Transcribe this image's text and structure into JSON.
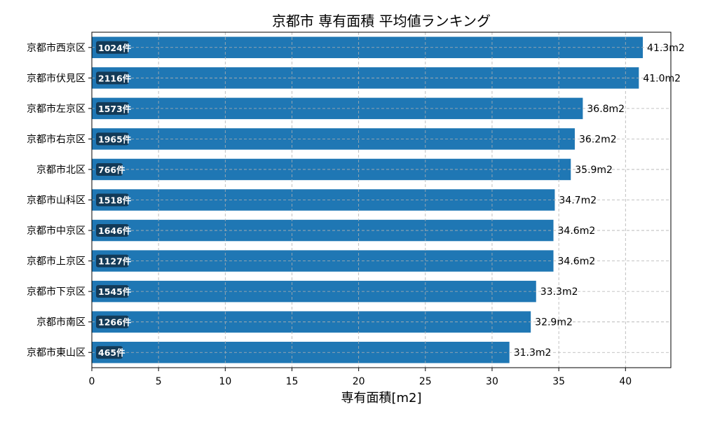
{
  "chart_data": {
    "type": "bar",
    "orientation": "horizontal",
    "title": "京都市 専有面積 平均値ランキング",
    "xlabel": "専有面積[m2]",
    "ylabel": "",
    "xlim": [
      0,
      43.4
    ],
    "xticks": [
      0,
      5,
      10,
      15,
      20,
      25,
      30,
      35,
      40
    ],
    "grid": true,
    "categories": [
      "京都市西京区",
      "京都市伏見区",
      "京都市左京区",
      "京都市右京区",
      "京都市北区",
      "京都市山科区",
      "京都市中京区",
      "京都市上京区",
      "京都市下京区",
      "京都市南区",
      "京都市東山区"
    ],
    "values": [
      41.3,
      41.0,
      36.8,
      36.2,
      35.9,
      34.7,
      34.6,
      34.6,
      33.3,
      32.9,
      31.3
    ],
    "value_labels": [
      "41.3m2",
      "41.0m2",
      "36.8m2",
      "36.2m2",
      "35.9m2",
      "34.7m2",
      "34.6m2",
      "34.6m2",
      "33.3m2",
      "32.9m2",
      "31.3m2"
    ],
    "count_labels": [
      "1024件",
      "2116件",
      "1573件",
      "1965件",
      "766件",
      "1518件",
      "1646件",
      "1127件",
      "1545件",
      "1266件",
      "465件"
    ],
    "colors": {
      "bar": "#1f77b4",
      "badge": "#133a57",
      "grid": "#b0b0b0"
    }
  }
}
